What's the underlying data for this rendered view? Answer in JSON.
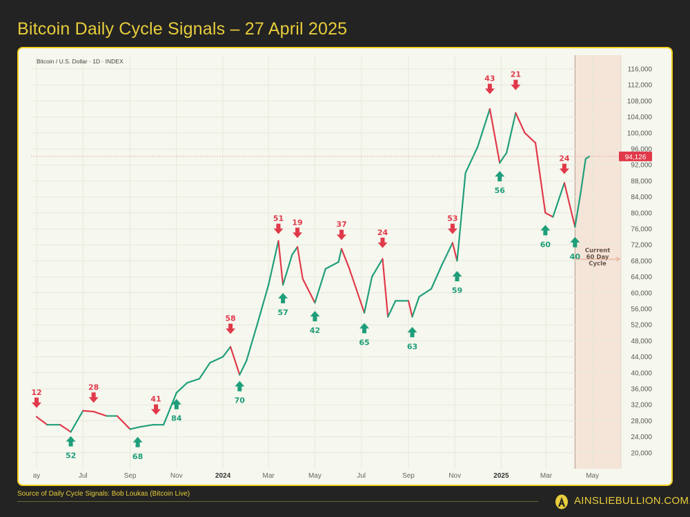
{
  "title": "Bitcoin Daily Cycle Signals – 27 April 2025",
  "footer": {
    "source": "Source of Daily Cycle Signals: Bob Loukas (Bitcoin Live)",
    "brand": "AINSLIEBULLION.COM.AU"
  },
  "colors": {
    "background": "#232323",
    "accent": "#f2cf1d",
    "up": "#1e9e7a",
    "down": "#e0394a",
    "cycle_shade": "#f5e4d8"
  },
  "chart_data": {
    "type": "line",
    "instrument_label": "Bitcoin / U.S. Dollar · 1D · INDEX",
    "ylim": [
      18000,
      118000
    ],
    "y_ticks": [
      20000,
      24000,
      28000,
      32000,
      36000,
      40000,
      44000,
      48000,
      52000,
      56000,
      60000,
      64000,
      68000,
      72000,
      76000,
      80000,
      84000,
      88000,
      92000,
      96000,
      100000,
      104000,
      108000,
      112000,
      116000
    ],
    "y_tick_labels": [
      "20,000",
      "24,000",
      "28,000",
      "32,000",
      "36,000",
      "40,000",
      "44,000",
      "48,000",
      "52,000",
      "56,000",
      "60,000",
      "64,000",
      "68,000",
      "72,000",
      "76,000",
      "80,000",
      "84,000",
      "88,000",
      "92,000",
      "96,000",
      "100,000",
      "104,000",
      "108,000",
      "112,000",
      "116,000"
    ],
    "x_ticks": [
      {
        "date": "2023-05-01",
        "label": "ay",
        "bold": false
      },
      {
        "date": "2023-07-01",
        "label": "Jul",
        "bold": false
      },
      {
        "date": "2023-09-01",
        "label": "Sep",
        "bold": false
      },
      {
        "date": "2023-11-01",
        "label": "Nov",
        "bold": false
      },
      {
        "date": "2024-01-01",
        "label": "2024",
        "bold": true
      },
      {
        "date": "2024-03-01",
        "label": "Mar",
        "bold": false
      },
      {
        "date": "2024-05-01",
        "label": "May",
        "bold": false
      },
      {
        "date": "2024-07-01",
        "label": "Jul",
        "bold": false
      },
      {
        "date": "2024-09-01",
        "label": "Sep",
        "bold": false
      },
      {
        "date": "2024-11-01",
        "label": "Nov",
        "bold": false
      },
      {
        "date": "2025-01-01",
        "label": "2025",
        "bold": true
      },
      {
        "date": "2025-03-01",
        "label": "Mar",
        "bold": false
      },
      {
        "date": "2025-05-01",
        "label": "May",
        "bold": false
      }
    ],
    "grid": true,
    "last_price": 94126,
    "last_price_label": "94,126",
    "series": [
      {
        "points": [
          [
            "2023-05-01",
            29000
          ],
          [
            "2023-05-15",
            27000
          ],
          [
            "2023-06-01",
            27000
          ],
          [
            "2023-06-15",
            25200
          ],
          [
            "2023-07-01",
            30500
          ],
          [
            "2023-07-15",
            30300
          ],
          [
            "2023-08-01",
            29200
          ],
          [
            "2023-08-15",
            29200
          ],
          [
            "2023-09-01",
            25900
          ],
          [
            "2023-09-15",
            26500
          ],
          [
            "2023-10-01",
            27000
          ],
          [
            "2023-10-15",
            27000
          ],
          [
            "2023-11-01",
            35000
          ],
          [
            "2023-11-15",
            37500
          ],
          [
            "2023-12-01",
            38500
          ],
          [
            "2023-12-15",
            42500
          ],
          [
            "2024-01-01",
            44000
          ],
          [
            "2024-01-11",
            46500
          ],
          [
            "2024-01-23",
            39500
          ],
          [
            "2024-02-01",
            43000
          ],
          [
            "2024-02-15",
            52000
          ],
          [
            "2024-03-01",
            62000
          ],
          [
            "2024-03-14",
            73000
          ],
          [
            "2024-03-20",
            62000
          ],
          [
            "2024-04-01",
            69500
          ],
          [
            "2024-04-08",
            71500
          ],
          [
            "2024-04-15",
            63500
          ],
          [
            "2024-05-01",
            57500
          ],
          [
            "2024-05-15",
            66000
          ],
          [
            "2024-06-01",
            67700
          ],
          [
            "2024-06-05",
            71000
          ],
          [
            "2024-06-15",
            66200
          ],
          [
            "2024-07-05",
            55000
          ],
          [
            "2024-07-15",
            64000
          ],
          [
            "2024-07-29",
            68500
          ],
          [
            "2024-08-05",
            54000
          ],
          [
            "2024-08-15",
            58000
          ],
          [
            "2024-09-01",
            58000
          ],
          [
            "2024-09-06",
            54000
          ],
          [
            "2024-09-15",
            59000
          ],
          [
            "2024-10-01",
            61000
          ],
          [
            "2024-10-15",
            67000
          ],
          [
            "2024-10-29",
            72500
          ],
          [
            "2024-11-04",
            68000
          ],
          [
            "2024-11-15",
            90000
          ],
          [
            "2024-12-01",
            96500
          ],
          [
            "2024-12-17",
            106000
          ],
          [
            "2024-12-30",
            92500
          ],
          [
            "2025-01-08",
            95000
          ],
          [
            "2025-01-20",
            105000
          ],
          [
            "2025-02-01",
            100000
          ],
          [
            "2025-02-15",
            97500
          ],
          [
            "2025-02-28",
            80000
          ],
          [
            "2025-03-10",
            79000
          ],
          [
            "2025-03-25",
            87500
          ],
          [
            "2025-04-08",
            76500
          ],
          [
            "2025-04-15",
            84500
          ],
          [
            "2025-04-22",
            93500
          ],
          [
            "2025-04-27",
            94126
          ]
        ]
      }
    ],
    "signals": [
      {
        "type": "high",
        "date": "2023-05-01",
        "price": 30000,
        "label": "12"
      },
      {
        "type": "low",
        "date": "2023-06-15",
        "price": 25200,
        "label": "52"
      },
      {
        "type": "high",
        "date": "2023-07-15",
        "price": 31300,
        "label": "28"
      },
      {
        "type": "low",
        "date": "2023-09-11",
        "price": 25000,
        "label": "68"
      },
      {
        "type": "high",
        "date": "2023-10-05",
        "price": 28300,
        "label": "41"
      },
      {
        "type": "low",
        "date": "2023-11-01",
        "price": 34500,
        "label": "84"
      },
      {
        "type": "high",
        "date": "2024-01-11",
        "price": 48500,
        "label": "58"
      },
      {
        "type": "low",
        "date": "2024-01-23",
        "price": 39000,
        "label": "70"
      },
      {
        "type": "high",
        "date": "2024-03-14",
        "price": 73500,
        "label": "51"
      },
      {
        "type": "low",
        "date": "2024-03-20",
        "price": 61000,
        "label": "57"
      },
      {
        "type": "high",
        "date": "2024-04-08",
        "price": 72500,
        "label": "19"
      },
      {
        "type": "low",
        "date": "2024-05-01",
        "price": 56500,
        "label": "42"
      },
      {
        "type": "high",
        "date": "2024-06-05",
        "price": 72000,
        "label": "37"
      },
      {
        "type": "low",
        "date": "2024-07-05",
        "price": 53500,
        "label": "65"
      },
      {
        "type": "high",
        "date": "2024-07-29",
        "price": 70000,
        "label": "24"
      },
      {
        "type": "low",
        "date": "2024-09-06",
        "price": 52500,
        "label": "63"
      },
      {
        "type": "high",
        "date": "2024-10-29",
        "price": 73500,
        "label": "53"
      },
      {
        "type": "low",
        "date": "2024-11-04",
        "price": 66500,
        "label": "59"
      },
      {
        "type": "high",
        "date": "2024-12-17",
        "price": 108500,
        "label": "43"
      },
      {
        "type": "low",
        "date": "2024-12-30",
        "price": 91500,
        "label": "56"
      },
      {
        "type": "high",
        "date": "2025-01-20",
        "price": 109500,
        "label": "21"
      },
      {
        "type": "low",
        "date": "2025-02-28",
        "price": 78000,
        "label": "60"
      },
      {
        "type": "high",
        "date": "2025-03-25",
        "price": 88500,
        "label": "24"
      },
      {
        "type": "low",
        "date": "2025-04-08",
        "price": 75000,
        "label": "40"
      }
    ],
    "annotation": {
      "text": [
        "Current",
        "60 Day",
        "Cycle"
      ],
      "start_date": "2025-04-08"
    }
  }
}
